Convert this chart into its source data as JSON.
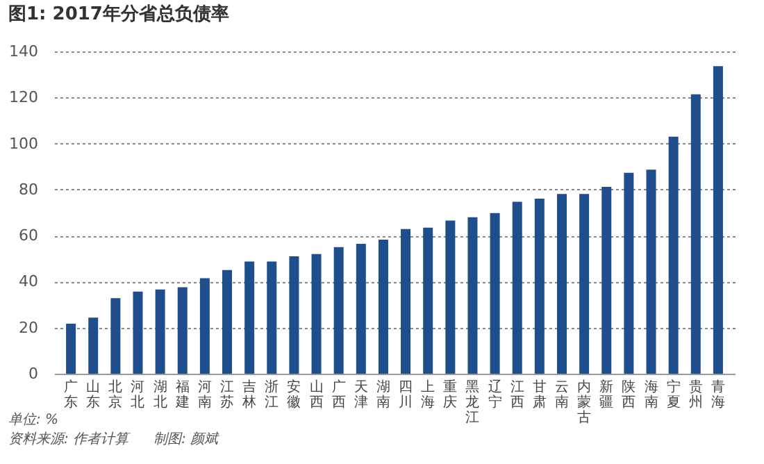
{
  "chart_data": {
    "type": "bar",
    "title": "图1: 2017年分省总负债率",
    "categories": [
      "广东",
      "山东",
      "北京",
      "河北",
      "湖北",
      "福建",
      "河南",
      "江苏",
      "吉林",
      "浙江",
      "安徽",
      "山西",
      "广西",
      "天津",
      "湖南",
      "四川",
      "上海",
      "重庆",
      "黑龙江",
      "辽宁",
      "江西",
      "甘肃",
      "云南",
      "内蒙古",
      "新疆",
      "陕西",
      "海南",
      "宁夏",
      "贵州",
      "青海"
    ],
    "values": [
      21.7,
      24.4,
      32.8,
      35.7,
      36.6,
      37.6,
      41.5,
      45,
      48.7,
      48.7,
      51,
      52,
      55,
      56.4,
      58.2,
      62.8,
      63.4,
      66.5,
      68,
      69.8,
      74.7,
      76,
      78.1,
      78.1,
      81.2,
      87.3,
      88.6,
      103,
      121.4,
      133.6
    ],
    "color": "#1f4e8c",
    "ylim": [
      0,
      140
    ],
    "yticks": [
      0,
      20,
      40,
      60,
      80,
      100,
      120,
      140
    ],
    "grid": "y",
    "annotations": [
      "单位: %",
      "资料来源: 作者计算",
      "制图: 颜斌"
    ]
  }
}
